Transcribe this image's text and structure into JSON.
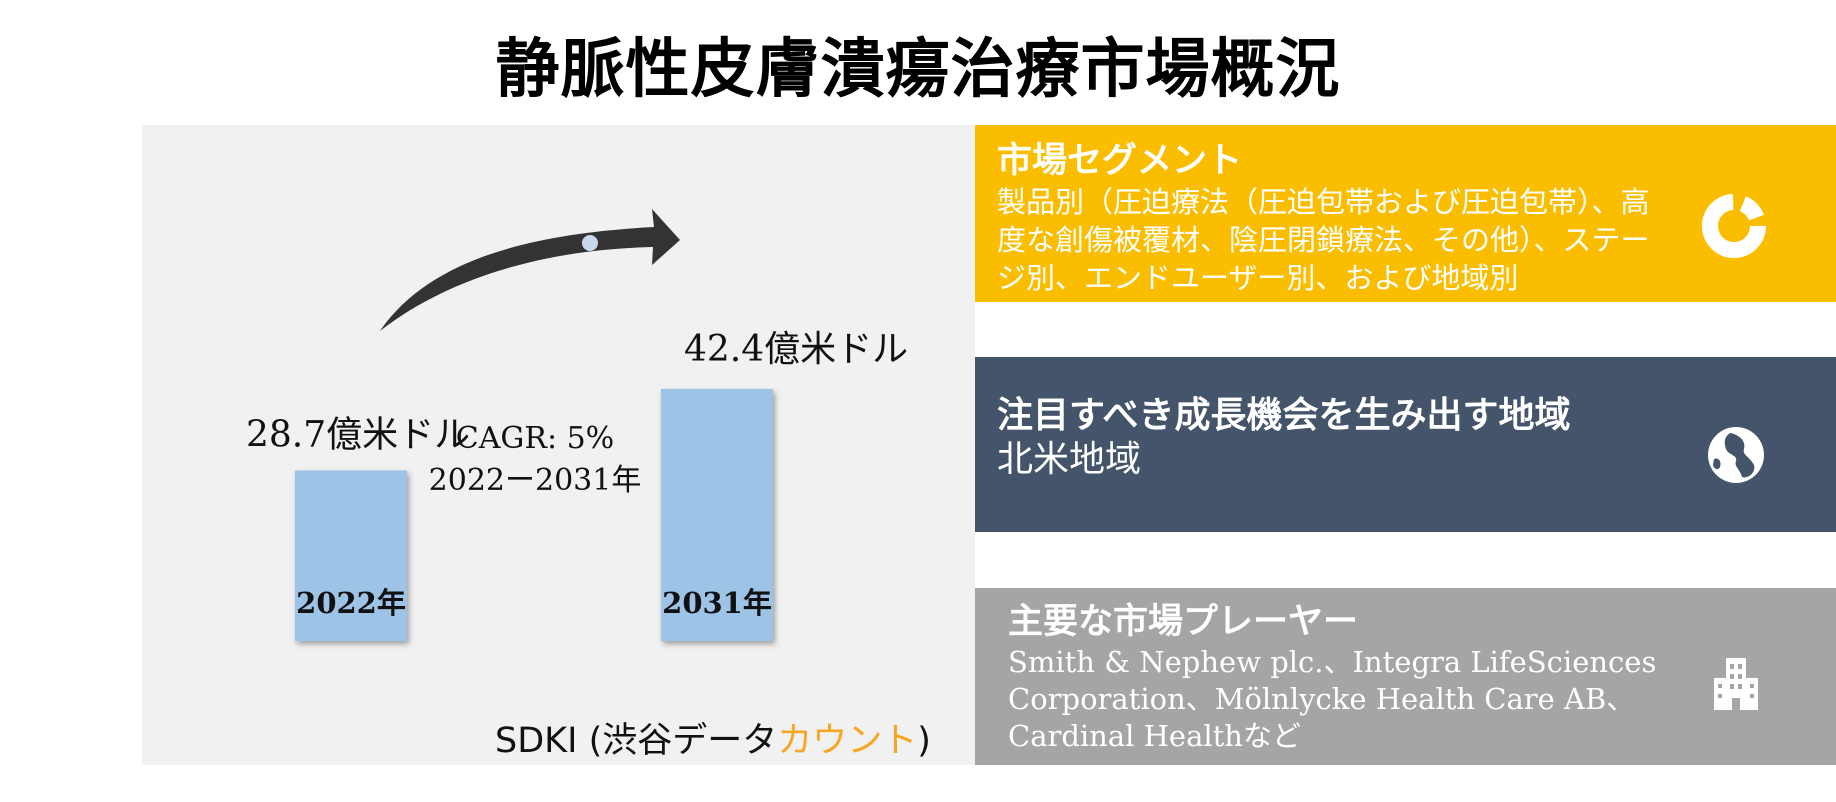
{
  "title": "静脈性皮膚潰瘍治療市場概況",
  "chart_data": {
    "type": "bar",
    "categories": [
      "2022年",
      "2031年"
    ],
    "values": [
      28.7,
      42.4
    ],
    "value_labels": [
      "28.7億米ドル",
      "42.4億米ドル"
    ],
    "unit": "億米ドル",
    "bar_color": "#9dc3e6",
    "cagr_line1": "CAGR: 5%",
    "cagr_line2": "2022ー2031年"
  },
  "source": {
    "prefix": "SDKI (渋谷データ",
    "accent": "カウント",
    "suffix": ")",
    "accent_color": "#f5a623"
  },
  "segments": {
    "title": "市場セグメント",
    "body": "製品別（圧迫療法（圧迫包帯および圧迫包帯）、高度な創傷被覆材、陰圧閉鎖療法、その他）、ステージ別、エンドユーザー別、および地域別",
    "icon": "donut-chart-icon",
    "color": "#fbbd00"
  },
  "region": {
    "title": "注目すべき成長機会を生み出す地域",
    "body": "北米地域",
    "icon": "globe-icon",
    "color": "#44546a"
  },
  "players": {
    "title": "主要な市場プレーヤー",
    "body": "Smith & Nephew plc.、Integra LifeSciences Corporation、Mölnlycke Health Care AB、Cardinal Healthなど",
    "icon": "building-icon",
    "color": "#a5a5a5"
  }
}
